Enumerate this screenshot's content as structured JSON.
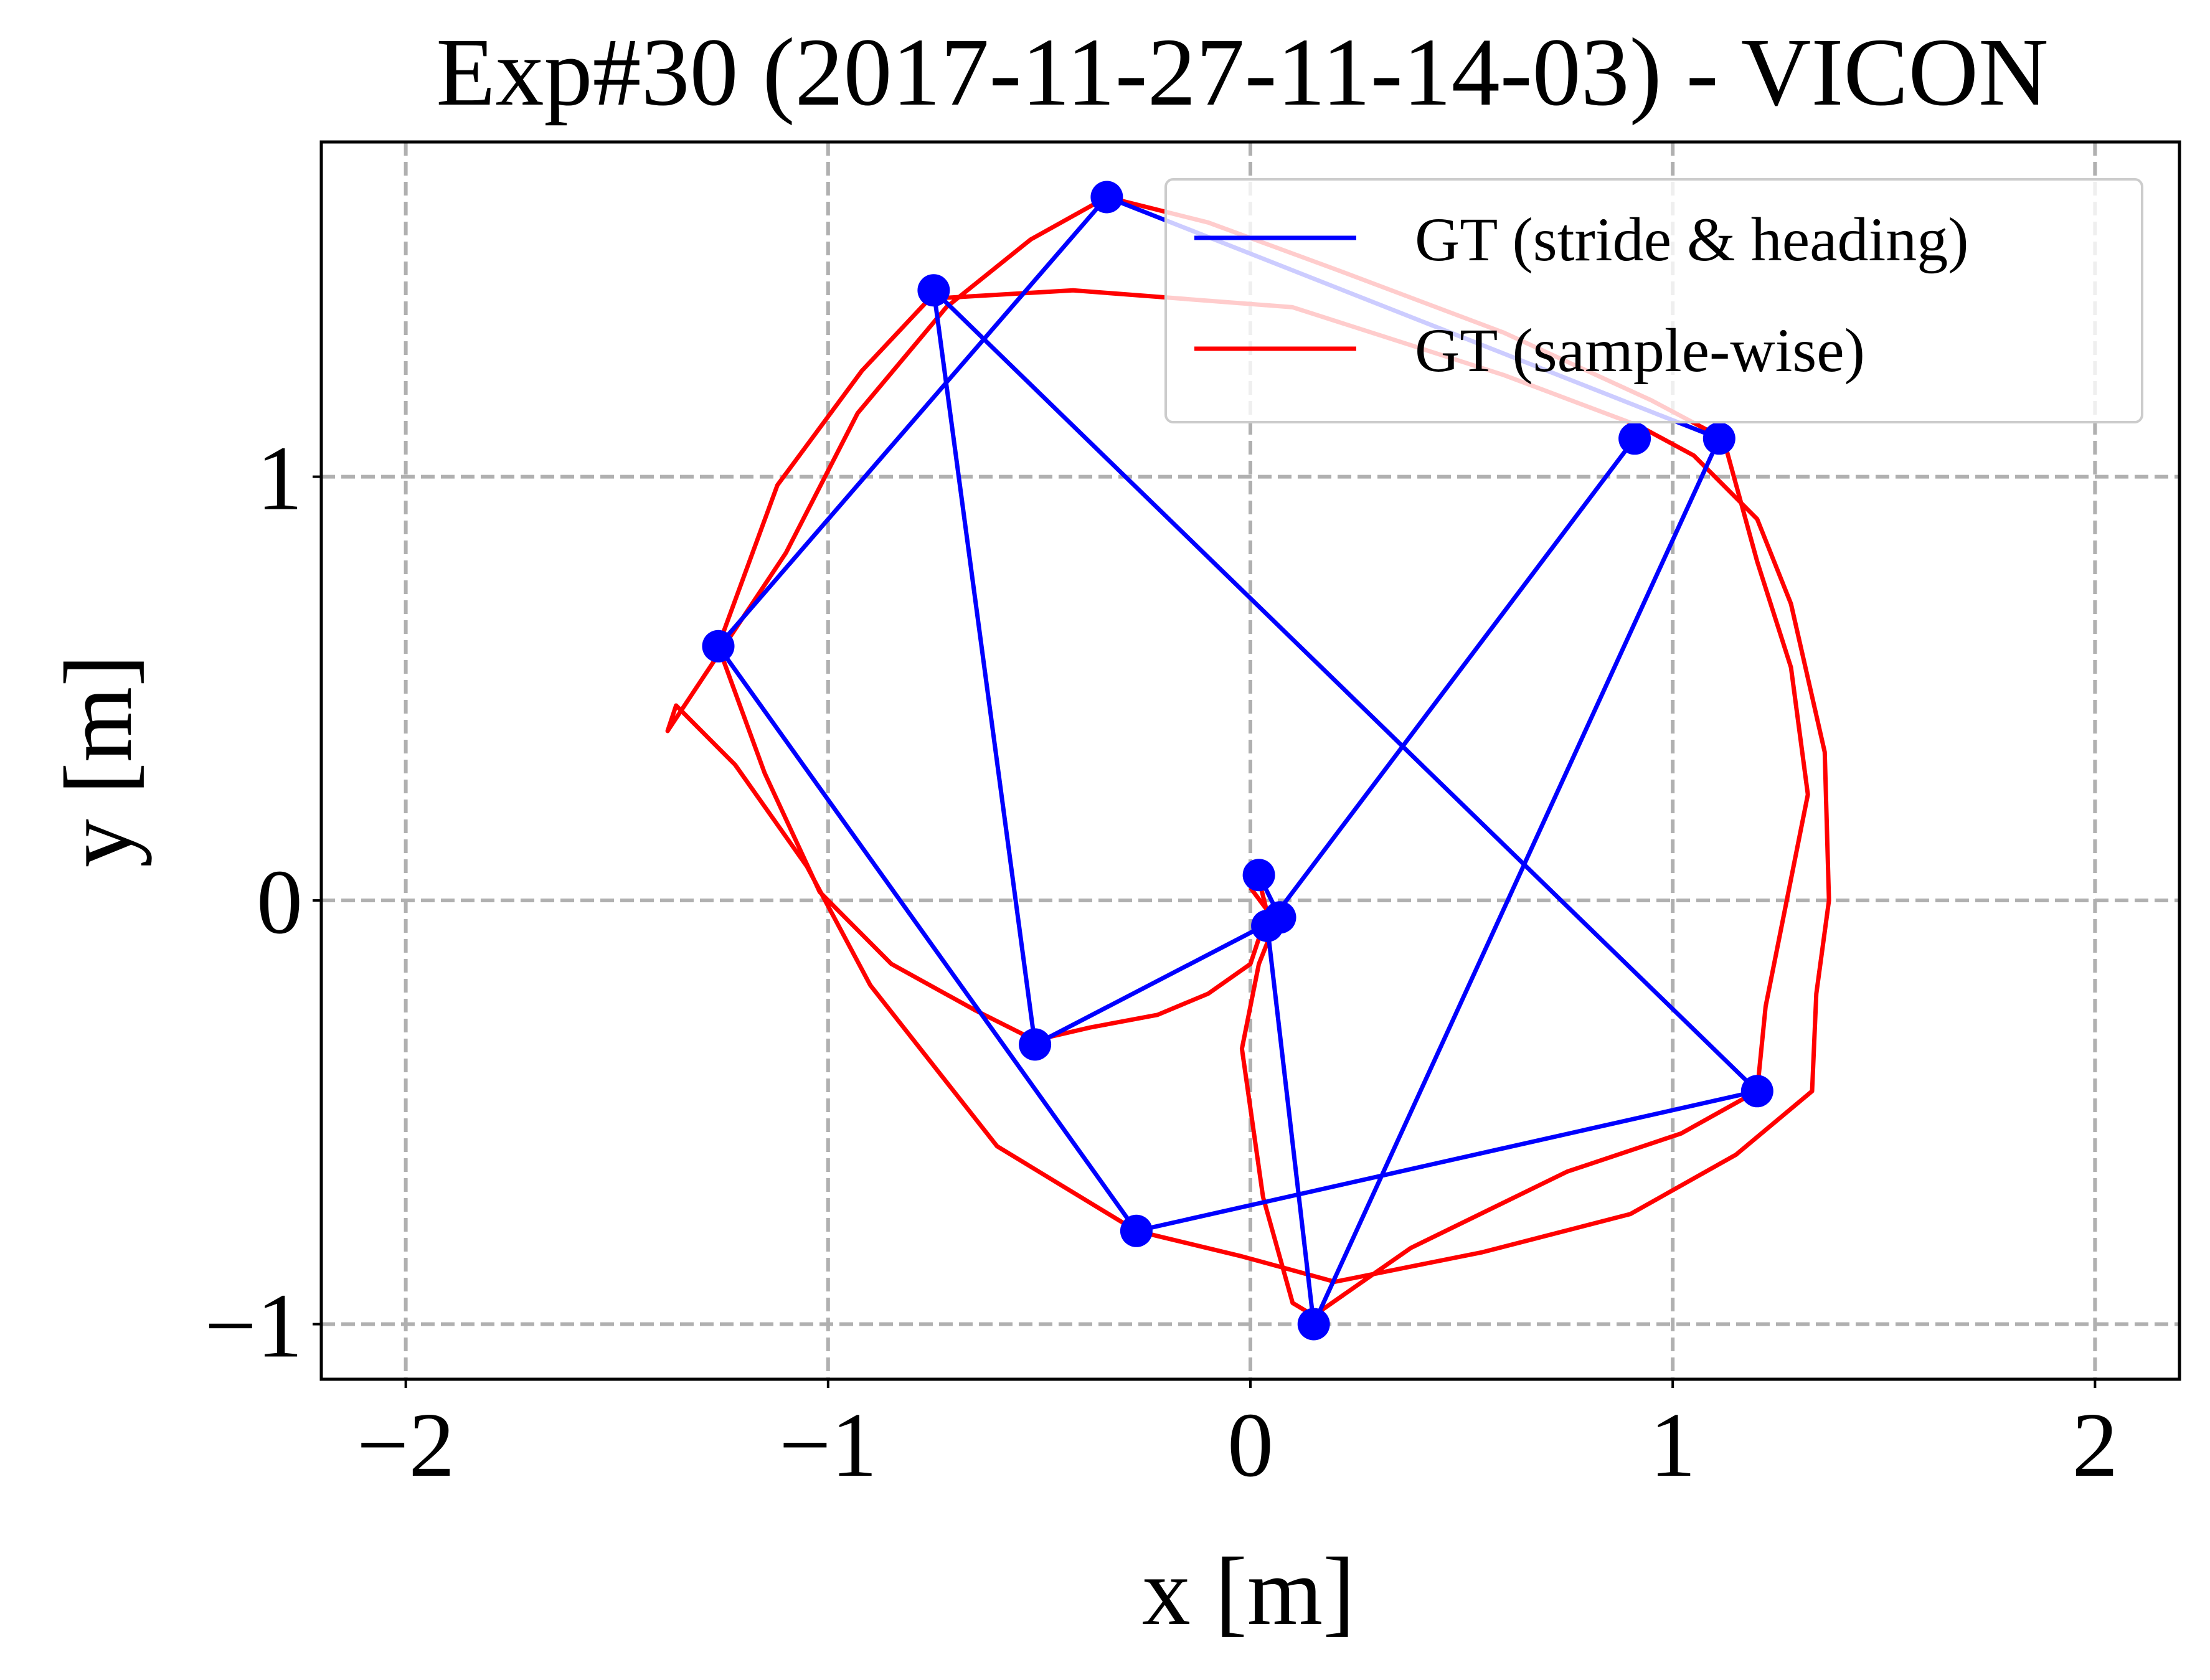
{
  "chart_data": {
    "type": "line",
    "title": "Exp#30 (2017-11-27-11-14-03) - VICON",
    "xlabel": "x [m]",
    "ylabel": "y [m]",
    "xlim": [
      -2.2,
      2.2
    ],
    "ylim": [
      -1.13,
      1.79
    ],
    "xticks": [
      -2,
      -1,
      0,
      1,
      2
    ],
    "xtick_labels": [
      "−2",
      "−1",
      "0",
      "1",
      "2"
    ],
    "yticks": [
      -1,
      0,
      1
    ],
    "ytick_labels": [
      "−1",
      "0",
      "1"
    ],
    "grid": true,
    "legend_position": "top-right",
    "series": [
      {
        "name": "GT (stride & heading)",
        "color": "#0000ff",
        "markers": true,
        "points": [
          [
            0.02,
            0.06
          ],
          [
            0.07,
            -0.04
          ],
          [
            -0.51,
            -0.34
          ],
          [
            -0.75,
            1.44
          ],
          [
            1.2,
            -0.45
          ],
          [
            -0.27,
            -0.78
          ],
          [
            -1.26,
            0.6
          ],
          [
            -0.34,
            1.66
          ],
          [
            1.11,
            1.09
          ],
          [
            0.15,
            -1.0
          ],
          [
            0.04,
            -0.06
          ],
          [
            0.91,
            1.09
          ]
        ]
      },
      {
        "name": "GT (sample-wise)",
        "color": "#ff0000",
        "markers": false,
        "points": [
          [
            0.02,
            0.05
          ],
          [
            0.04,
            -0.03
          ],
          [
            0.0,
            -0.15
          ],
          [
            -0.1,
            -0.22
          ],
          [
            -0.22,
            -0.27
          ],
          [
            -0.38,
            -0.3
          ],
          [
            -0.51,
            -0.33
          ],
          [
            -0.65,
            -0.26
          ],
          [
            -0.85,
            -0.15
          ],
          [
            -1.02,
            0.02
          ],
          [
            -1.15,
            0.3
          ],
          [
            -1.26,
            0.6
          ],
          [
            -1.12,
            0.98
          ],
          [
            -0.92,
            1.25
          ],
          [
            -0.76,
            1.42
          ],
          [
            -0.42,
            1.44
          ],
          [
            0.1,
            1.4
          ],
          [
            0.6,
            1.24
          ],
          [
            0.92,
            1.12
          ],
          [
            1.05,
            1.05
          ],
          [
            1.2,
            0.9
          ],
          [
            1.28,
            0.7
          ],
          [
            1.36,
            0.35
          ],
          [
            1.37,
            0.0
          ],
          [
            1.34,
            -0.22
          ],
          [
            1.33,
            -0.45
          ],
          [
            1.15,
            -0.6
          ],
          [
            0.9,
            -0.74
          ],
          [
            0.55,
            -0.83
          ],
          [
            0.2,
            -0.9
          ],
          [
            -0.02,
            -0.84
          ],
          [
            -0.27,
            -0.78
          ],
          [
            -0.6,
            -0.58
          ],
          [
            -0.9,
            -0.2
          ],
          [
            -1.05,
            0.08
          ],
          [
            -1.22,
            0.32
          ],
          [
            -1.36,
            0.46
          ],
          [
            -1.38,
            0.4
          ],
          [
            -1.28,
            0.55
          ],
          [
            -1.1,
            0.82
          ],
          [
            -0.93,
            1.15
          ],
          [
            -0.72,
            1.4
          ],
          [
            -0.52,
            1.56
          ],
          [
            -0.34,
            1.66
          ],
          [
            -0.1,
            1.6
          ],
          [
            0.2,
            1.49
          ],
          [
            0.6,
            1.34
          ],
          [
            0.95,
            1.18
          ],
          [
            1.12,
            1.09
          ],
          [
            1.2,
            0.8
          ],
          [
            1.28,
            0.55
          ],
          [
            1.32,
            0.25
          ],
          [
            1.27,
            0.0
          ],
          [
            1.22,
            -0.25
          ],
          [
            1.2,
            -0.45
          ],
          [
            1.02,
            -0.55
          ],
          [
            0.75,
            -0.64
          ],
          [
            0.38,
            -0.82
          ],
          [
            0.15,
            -0.98
          ],
          [
            0.1,
            -0.95
          ],
          [
            0.03,
            -0.7
          ],
          [
            -0.02,
            -0.35
          ],
          [
            0.02,
            -0.15
          ],
          [
            0.06,
            -0.05
          ],
          [
            0.0,
            0.03
          ]
        ]
      }
    ]
  }
}
